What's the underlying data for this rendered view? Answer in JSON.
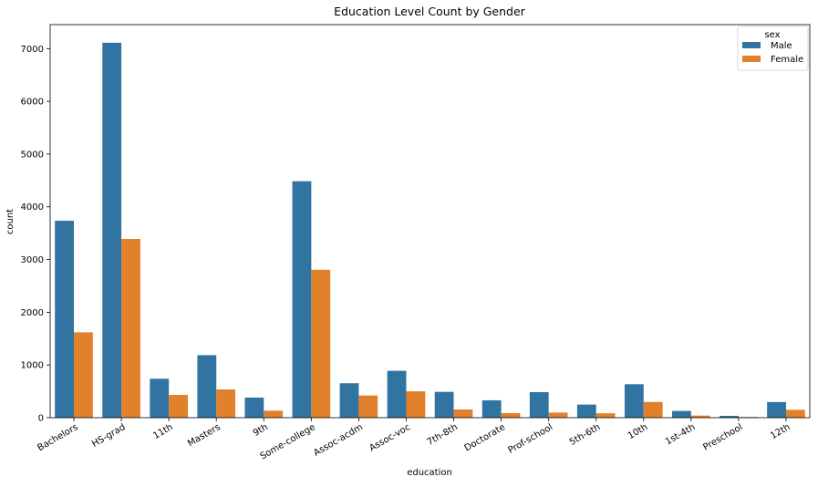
{
  "chart_data": {
    "type": "bar",
    "title": "Education Level Count by Gender",
    "xlabel": "education",
    "ylabel": "count",
    "ylim": [
      0,
      7455
    ],
    "yticks": [
      0,
      1000,
      2000,
      3000,
      4000,
      5000,
      6000,
      7000
    ],
    "grid": false,
    "legend_title": "sex",
    "legend_position": "top-right",
    "categories": [
      "Bachelors",
      "HS-grad",
      "11th",
      "Masters",
      "9th",
      "Some-college",
      "Assoc-acdm",
      "Assoc-voc",
      "7th-8th",
      "Doctorate",
      "Prof-school",
      "5th-6th",
      "10th",
      "1st-4th",
      "Preschool",
      "12th"
    ],
    "series": [
      {
        "name": "Male",
        "color": "#3274a1",
        "values": [
          3735,
          7111,
          739,
          1187,
          381,
          4485,
          653,
          889,
          490,
          330,
          485,
          249,
          635,
          128,
          35,
          296
        ]
      },
      {
        "name": "Female",
        "color": "#e1812c",
        "values": [
          1620,
          3390,
          432,
          536,
          133,
          2806,
          421,
          500,
          156,
          86,
          97,
          84,
          298,
          40,
          14,
          150
        ]
      }
    ]
  }
}
